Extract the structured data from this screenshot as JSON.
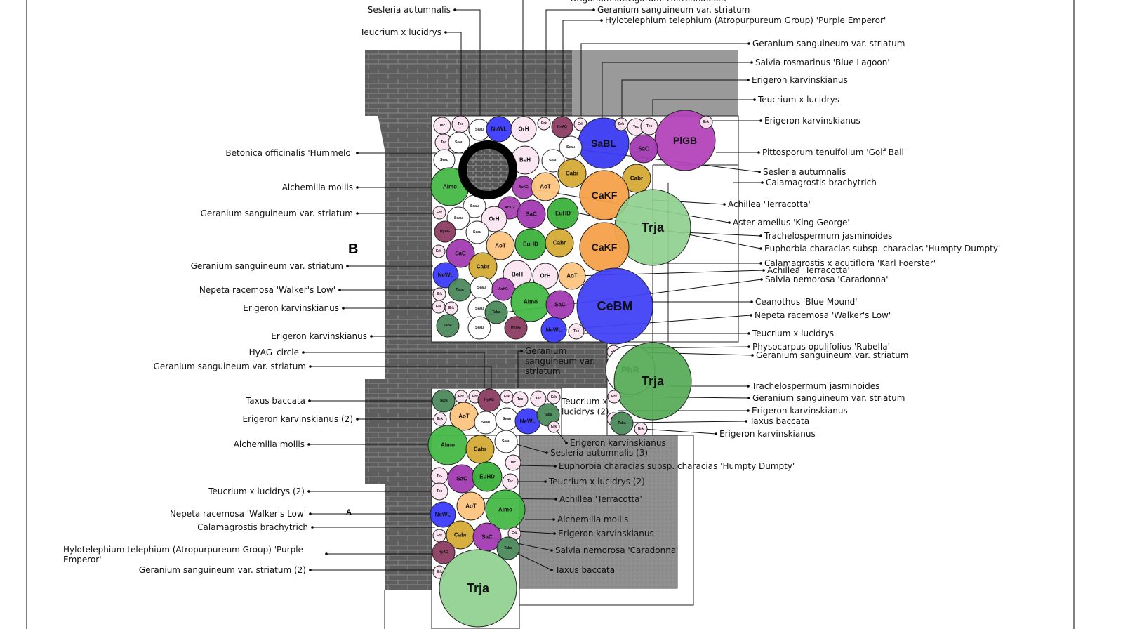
{
  "plant_colors": {
    "Tec": "#fbe4ef",
    "Erk": "#fbe4ef",
    "Seau": "#ffffff",
    "NeWL": "#3b3bff",
    "OrH": "#fbe6f1",
    "HyAG": "#8c3d62",
    "SaBL": "#3a3af2",
    "SaC": "#a23ab2",
    "PlGB": "#b445bb",
    "Almo": "#45b845",
    "AcKG": "#a742b3",
    "AoT": "#fdc47e",
    "Cabr": "#d4ab36",
    "CaKF": "#f5a04a",
    "EuHD": "#3bb13b",
    "Trja": "#8fcf8f",
    "CeBM": "#4242f6",
    "Taba": "#4b8a5b",
    "BeH": "#fbe6f1",
    "PhR": "#ffffff"
  },
  "paving_color": "#5e5e5e",
  "gravel_color": "#8e8e8e",
  "markers": {
    "b": "B",
    "a": "A"
  },
  "labels_left": [
    "Sesleria autumnalis",
    "Teucrium x lucidrys",
    "Betonica officinalis 'Hummelo'",
    "Alchemilla mollis",
    "Geranium sanguineum var. striatum",
    "Geranium sanguineum var. striatum",
    "Nepeta racemosa 'Walker's Low'",
    "Erigeron karvinskianus",
    "Erigeron karvinskianus",
    "HyAG_circle",
    "Geranium sanguineum var. striatum",
    "Taxus baccata",
    "Erigeron karvinskianus (2)",
    "Alchemilla mollis",
    "Teucrium x lucidrys (2)",
    "Nepeta racemosa 'Walker's Low'",
    "Calamagrostis brachytrich",
    "Geranium sanguineum var. striatum (2)"
  ],
  "label_hylotelephium_left": [
    "Hylotelephium telephium (Atropurpureum Group) 'Purple",
    "Emperor'"
  ],
  "labels_right": [
    "Origanum laevigatum 'Herrenhausen'",
    "Geranium sanguineum var. striatum",
    "Hylotelephium telephium (Atropurpureum Group) 'Purple Emperor'",
    "Geranium sanguineum var. striatum",
    "Salvia rosmarinus 'Blue Lagoon'",
    "Erigeron karvinskianus",
    "Teucrium x lucidrys",
    "Erigeron karvinskianus",
    "Pittosporum tenuifolium 'Golf Ball'",
    "Sesleria autumnalis",
    "Calamagrostis brachytrich",
    "Achillea 'Terracotta'",
    "Aster amellus 'King George'",
    "Trachelospermum jasminoides",
    "Euphorbia characias subsp. characias 'Humpty Dumpty'",
    "Calamagrostis x acutiflora 'Karl Foerster'",
    "Achillea 'Terracotta'",
    "Salvia nemorosa 'Caradonna'",
    "Ceanothus 'Blue Mound'",
    "Nepeta racemosa 'Walker's Low'",
    "Teucrium x lucidrys",
    "Physocarpus opulifolius 'Rubella'",
    "Geranium sanguineum var. striatum",
    "Trachelospermum jasminoides",
    "Geranium sanguineum var. striatum",
    "Erigeron karvinskianus",
    "Taxus baccata",
    "Erigeron karvinskianus",
    "Erigeron karvinskianus",
    "Sesleria autumnalis (3)",
    "Euphorbia characias subsp. characias 'Humpty Dumpty'",
    "Teucrium x lucidrys (2)",
    "Achillea 'Terracotta'",
    "Alchemilla mollis",
    "Erigeron karvinskianus",
    "Salvia nemorosa 'Caradonna'",
    "Taxus baccata"
  ],
  "label_geranium_mid": [
    "Geranium",
    "sanguineum var.",
    "striatum"
  ],
  "label_teucrium_mid": [
    "Teucrium x",
    "lucidrys (2)"
  ],
  "plants": [
    "Tec",
    "Tec",
    "Seau",
    "NeWL",
    "OrH",
    "Erk",
    "HyAG",
    "Erk",
    "SaBL",
    "Erk",
    "Tec",
    "Tec",
    "PlGB",
    "Erk",
    "Tec",
    "Seau",
    "Seau",
    "BeH",
    "Seau",
    "Seau",
    "SaC",
    "Cabr",
    "Cabr",
    "Almo",
    "AcKG",
    "AoT",
    "CaKF",
    "Trja",
    "Seau",
    "AcKG",
    "Erk",
    "Seau",
    "OrH",
    "SaC",
    "EuHD",
    "HyAG",
    "Seau",
    "AoT",
    "EuHD",
    "Cabr",
    "CaKF",
    "Erk",
    "SaC",
    "Cabr",
    "NeWL",
    "BeH",
    "OrH",
    "AoT",
    "CeBM",
    "Taba",
    "Seau",
    "AcKG",
    "Almo",
    "SaC",
    "Erk",
    "Erk",
    "Erk",
    "Seau",
    "Taba",
    "Taba",
    "Seau",
    "HyAG",
    "NeWL",
    "Tec",
    "Erk",
    "PhR",
    "Trja",
    "Erk",
    "Erk",
    "Taba",
    "Erk",
    "Taba",
    "Erk",
    "Erk",
    "HyAG",
    "Erk",
    "Tec",
    "Tec",
    "Erk",
    "Erk",
    "AoT",
    "Seau",
    "Seau",
    "NeWL",
    "Taba",
    "Erk",
    "Almo",
    "Cabr",
    "Seau",
    "Tec",
    "Tec",
    "SaC",
    "EuHD",
    "Tec",
    "Tec",
    "AoT",
    "Almo",
    "NeWL",
    "Erk",
    "Erk",
    "Cabr",
    "SaC",
    "Taba",
    "HyAG",
    "Erk",
    "Trja"
  ]
}
